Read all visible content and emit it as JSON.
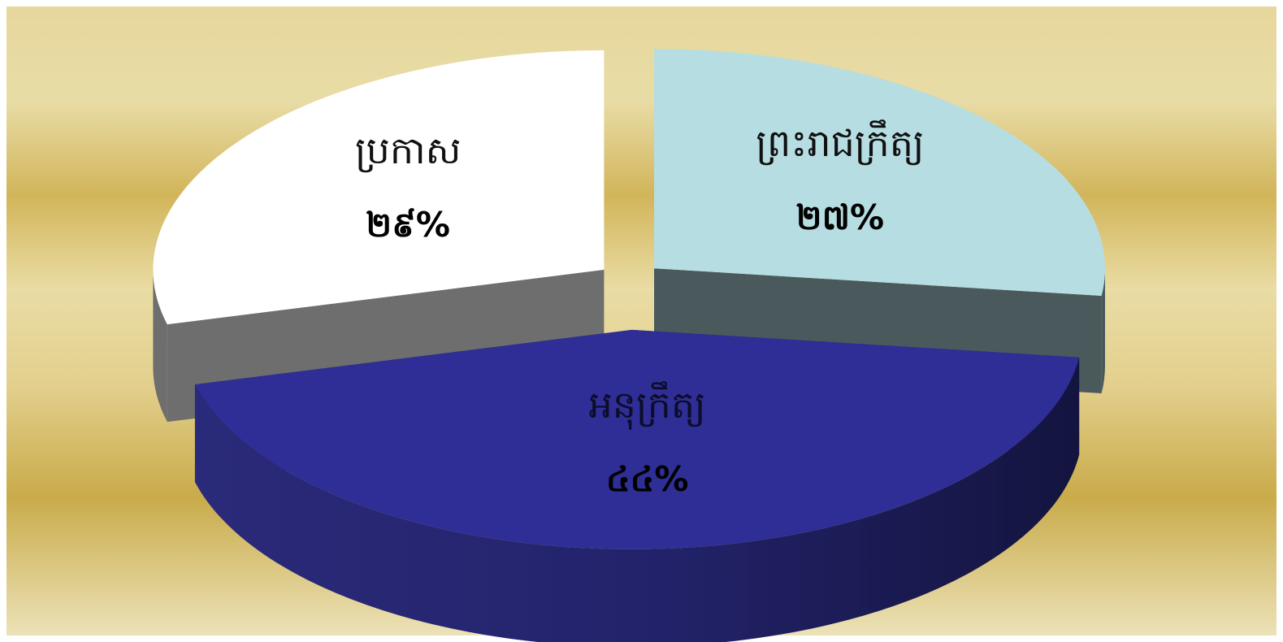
{
  "chart_data": {
    "type": "pie",
    "title": "",
    "categories": [
      "ព្រះរាជក្រឹត្យ",
      "អនុក្រឹត្យ",
      "ប្រកាស"
    ],
    "values": [
      27,
      44,
      29
    ],
    "value_labels": [
      "២៧%",
      "៤៤%",
      "២៩%"
    ],
    "colors": [
      "#b6dde2",
      "#2e2e96",
      "#ffffff"
    ],
    "side_colors": [
      "#4a5a5c",
      "#1e1e5e",
      "#6e6e6e"
    ],
    "style": "3d-exploded",
    "legend": "none"
  },
  "background": {
    "color_light": "#e9dca4",
    "color_dark": "#c8ab48"
  }
}
